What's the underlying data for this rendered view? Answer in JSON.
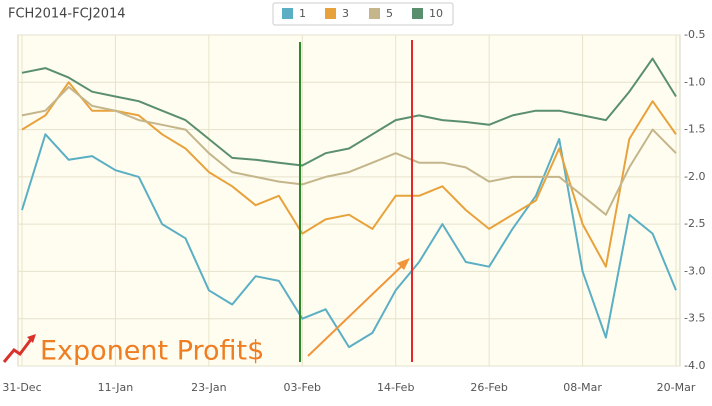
{
  "chart_data": {
    "type": "line",
    "title": "FCH2014-FCJ2014",
    "watermark": "Exponent Profit$",
    "categories": [
      "31-Dec",
      null,
      null,
      null,
      "11-Jan",
      null,
      null,
      null,
      "23-Jan",
      null,
      null,
      null,
      "03-Feb",
      null,
      null,
      null,
      "14-Feb",
      null,
      null,
      null,
      "26-Feb",
      null,
      null,
      null,
      "08-Mar",
      null,
      null,
      null,
      "20-Mar"
    ],
    "series": [
      {
        "name": "1",
        "color": "#5aafc4",
        "values": [
          -2.35,
          -1.55,
          -1.82,
          -1.78,
          -1.93,
          -2.0,
          -2.5,
          -2.65,
          -3.2,
          -3.35,
          -3.05,
          -3.1,
          -3.5,
          -3.4,
          -3.8,
          -3.65,
          -3.2,
          -2.9,
          -2.5,
          -2.9,
          -2.95,
          -2.55,
          -2.2,
          -1.6,
          -3.0,
          -3.7,
          -2.4,
          -2.6,
          -3.2
        ]
      },
      {
        "name": "3",
        "color": "#e8a23c",
        "values": [
          -1.5,
          -1.35,
          -1.0,
          -1.3,
          -1.3,
          -1.35,
          -1.55,
          -1.7,
          -1.95,
          -2.1,
          -2.3,
          -2.2,
          -2.6,
          -2.45,
          -2.4,
          -2.55,
          -2.2,
          -2.2,
          -2.1,
          -2.35,
          -2.55,
          -2.4,
          -2.25,
          -1.7,
          -2.5,
          -2.95,
          -1.6,
          -1.2,
          -1.55
        ]
      },
      {
        "name": "5",
        "color": "#c4b58a",
        "values": [
          -1.35,
          -1.3,
          -1.05,
          -1.25,
          -1.3,
          -1.4,
          -1.45,
          -1.5,
          -1.75,
          -1.95,
          -2.0,
          -2.05,
          -2.08,
          -2.0,
          -1.95,
          -1.85,
          -1.75,
          -1.85,
          -1.85,
          -1.9,
          -2.05,
          -2.0,
          -2.0,
          -2.0,
          -2.2,
          -2.4,
          -1.9,
          -1.5,
          -1.75
        ]
      },
      {
        "name": "10",
        "color": "#5a8f6e",
        "values": [
          -0.9,
          -0.85,
          -0.95,
          -1.1,
          -1.15,
          -1.2,
          -1.3,
          -1.4,
          -1.6,
          -1.8,
          -1.82,
          -1.85,
          -1.88,
          -1.75,
          -1.7,
          -1.55,
          -1.4,
          -1.35,
          -1.4,
          -1.42,
          -1.45,
          -1.35,
          -1.3,
          -1.3,
          -1.35,
          -1.4,
          -1.1,
          -0.75,
          -1.15
        ]
      }
    ],
    "ylim": [
      -4,
      -0.5
    ],
    "yticks": [
      -0.5,
      {
        "value": -1,
        "label": "-1.0"
      },
      -1.5,
      {
        "value": -2,
        "label": "-2.0"
      },
      -2.5,
      {
        "value": -3,
        "label": "-3.0"
      },
      -3.5,
      {
        "value": -4,
        "label": "-4.0"
      }
    ],
    "grid": true
  }
}
